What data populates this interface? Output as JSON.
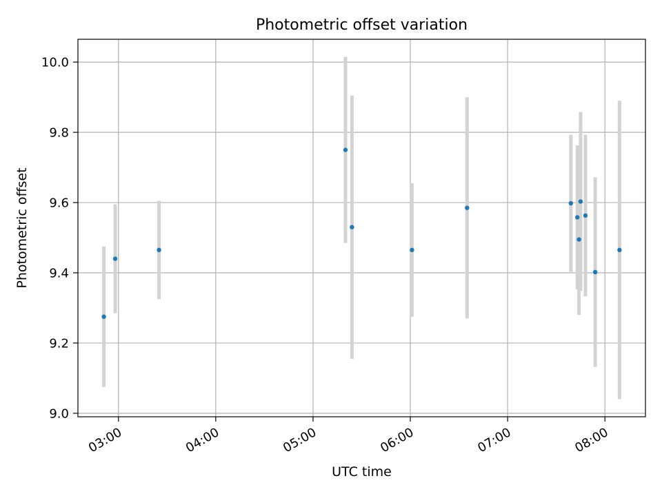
{
  "chart_data": {
    "type": "scatter",
    "title": "Photometric offset variation",
    "xlabel": "UTC time",
    "ylabel": "Photometric offset",
    "x_axis_type": "time",
    "xlim": [
      "02:35",
      "08:25"
    ],
    "ylim": [
      8.99,
      10.065
    ],
    "x_ticks": [
      "03:00",
      "04:00",
      "05:00",
      "06:00",
      "07:00",
      "08:00"
    ],
    "y_ticks": [
      9.0,
      9.2,
      9.4,
      9.6,
      9.8,
      10.0
    ],
    "y_tick_labels": [
      "9.0",
      "9.2",
      "9.4",
      "9.6",
      "9.8",
      "10.0"
    ],
    "grid": true,
    "legend": "none",
    "point_color": "#1f77b4",
    "errorbar_color": "#d3d3d3",
    "points": [
      {
        "t": "02:51",
        "y": 9.275,
        "err": 0.2
      },
      {
        "t": "02:58",
        "y": 9.44,
        "err": 0.155
      },
      {
        "t": "03:25",
        "y": 9.465,
        "err": 0.14
      },
      {
        "t": "05:20",
        "y": 9.75,
        "err": 0.265
      },
      {
        "t": "05:24",
        "y": 9.53,
        "err": 0.375
      },
      {
        "t": "06:01",
        "y": 9.465,
        "err": 0.19
      },
      {
        "t": "06:35",
        "y": 9.585,
        "err": 0.315
      },
      {
        "t": "07:39",
        "y": 9.598,
        "err": 0.195
      },
      {
        "t": "07:43",
        "y": 9.558,
        "err": 0.205
      },
      {
        "t": "07:44",
        "y": 9.495,
        "err": 0.215
      },
      {
        "t": "07:45",
        "y": 9.603,
        "err": 0.255
      },
      {
        "t": "07:48",
        "y": 9.563,
        "err": 0.23
      },
      {
        "t": "07:54",
        "y": 9.402,
        "err": 0.27
      },
      {
        "t": "08:09",
        "y": 9.465,
        "err": 0.425
      }
    ]
  }
}
